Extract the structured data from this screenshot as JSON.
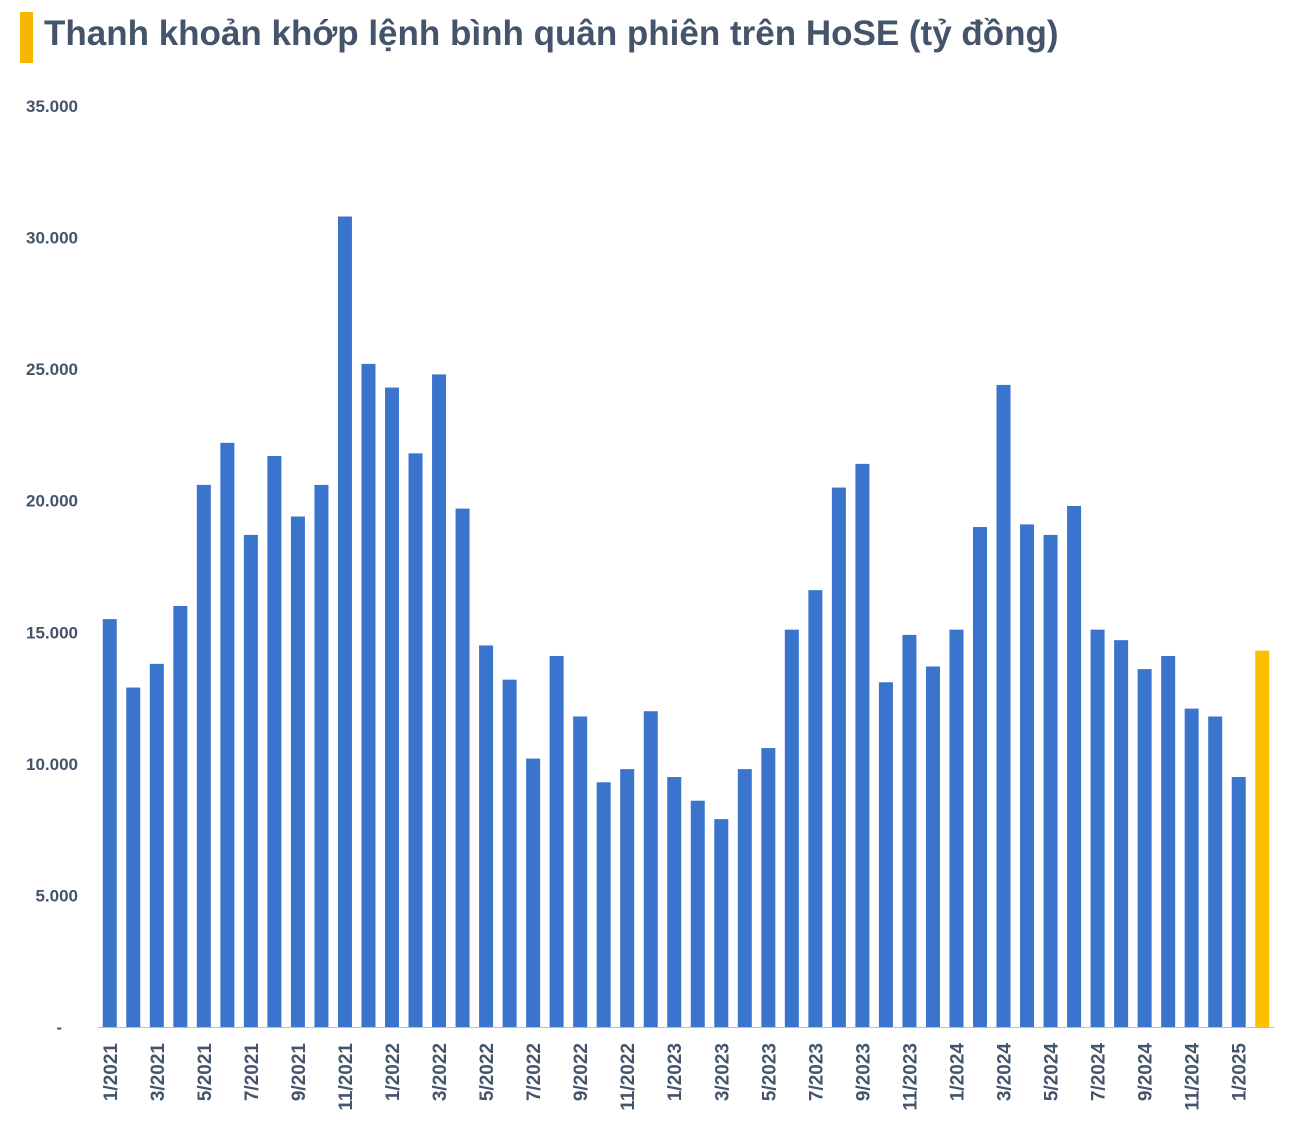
{
  "chart_data": {
    "type": "bar",
    "title": "Thanh khoản khớp lệnh bình quân phiên trên HoSE (tỷ đồng)",
    "accent_color": "#f5b700",
    "bar_color": "#3a74cd",
    "highlight_color": "#fdbf00",
    "ylim": [
      0,
      35000
    ],
    "yticks": [
      0,
      5000,
      10000,
      15000,
      20000,
      25000,
      30000,
      35000
    ],
    "ytick_labels": [
      "-",
      "5.000",
      "10.000",
      "15.000",
      "20.000",
      "25.000",
      "30.000",
      "35.000"
    ],
    "categories": [
      "1/2021",
      "2/2021",
      "3/2021",
      "4/2021",
      "5/2021",
      "6/2021",
      "7/2021",
      "8/2021",
      "9/2021",
      "10/2021",
      "11/2021",
      "12/2021",
      "1/2022",
      "2/2022",
      "3/2022",
      "4/2022",
      "5/2022",
      "6/2022",
      "7/2022",
      "8/2022",
      "9/2022",
      "10/2022",
      "11/2022",
      "12/2022",
      "1/2023",
      "2/2023",
      "3/2023",
      "4/2023",
      "5/2023",
      "6/2023",
      "7/2023",
      "8/2023",
      "9/2023",
      "10/2023",
      "11/2023",
      "12/2023",
      "1/2024",
      "2/2024",
      "3/2024",
      "4/2024",
      "5/2024",
      "6/2024",
      "7/2024",
      "8/2024",
      "9/2024",
      "10/2024",
      "11/2024",
      "12/2024",
      "1/2025",
      "2/2025"
    ],
    "x_tick_labels": [
      "1/2021",
      "",
      "3/2021",
      "",
      "5/2021",
      "",
      "7/2021",
      "",
      "9/2021",
      "",
      "11/2021",
      "",
      "1/2022",
      "",
      "3/2022",
      "",
      "5/2022",
      "",
      "7/2022",
      "",
      "9/2022",
      "",
      "11/2022",
      "",
      "1/2023",
      "",
      "3/2023",
      "",
      "5/2023",
      "",
      "7/2023",
      "",
      "9/2023",
      "",
      "11/2023",
      "",
      "1/2024",
      "",
      "3/2024",
      "",
      "5/2024",
      "",
      "7/2024",
      "",
      "9/2024",
      "",
      "11/2024",
      "",
      "1/2025",
      ""
    ],
    "values": [
      15500,
      12900,
      13800,
      16000,
      20600,
      22200,
      18700,
      21700,
      19400,
      20600,
      30800,
      25200,
      24300,
      21800,
      24800,
      19700,
      14500,
      13200,
      10200,
      14100,
      11800,
      9300,
      9800,
      12000,
      9500,
      8600,
      7900,
      9800,
      10600,
      15100,
      16600,
      20500,
      21400,
      13100,
      14900,
      13700,
      15100,
      19000,
      24400,
      19100,
      18700,
      19800,
      15100,
      14700,
      13600,
      14100,
      12100,
      11800,
      9500,
      14300
    ],
    "highlight_index": 49
  }
}
